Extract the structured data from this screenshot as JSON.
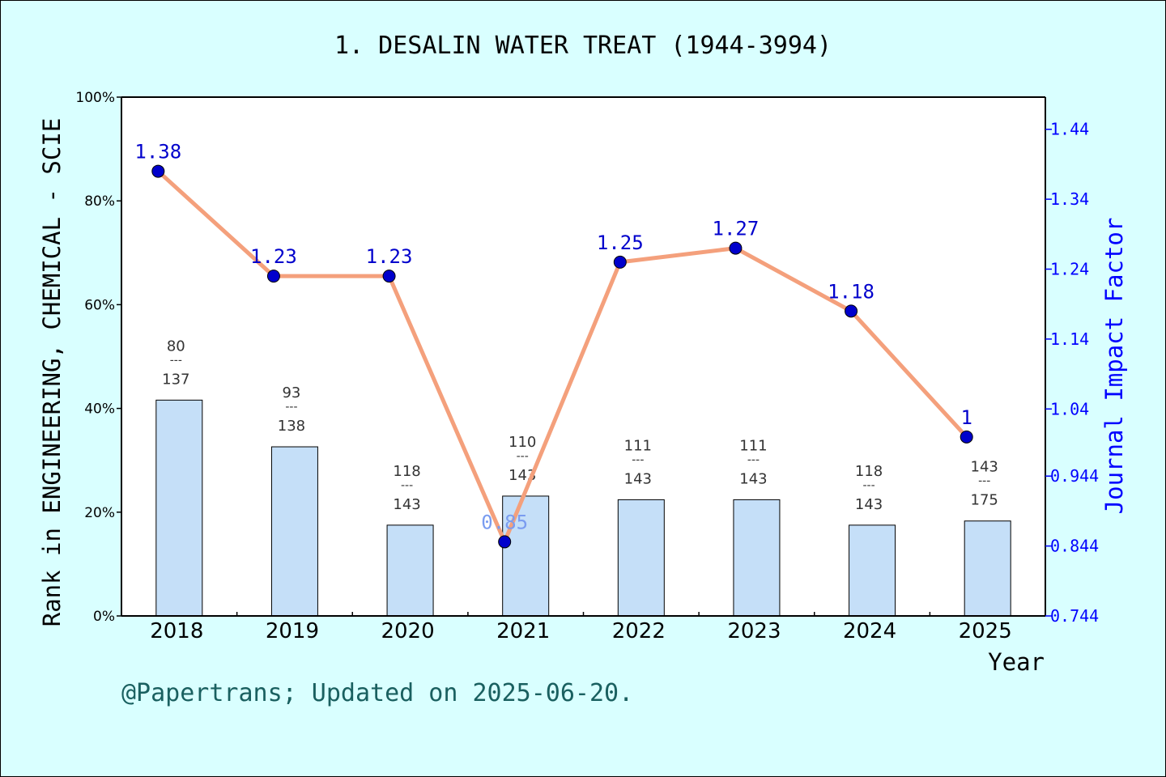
{
  "chart_data": {
    "type": "bar+line",
    "title": "1. DESALIN WATER TREAT (1944-3994)",
    "xlabel": "Year",
    "ylabel_left": "Rank in ENGINEERING, CHEMICAL - SCIE",
    "ylabel_right": "Journal Impact Factor",
    "categories": [
      "2018",
      "2019",
      "2020",
      "2021",
      "2022",
      "2023",
      "2024",
      "2025"
    ],
    "y_left": {
      "range": [
        0,
        100
      ],
      "ticks": [
        0,
        20,
        40,
        60,
        80,
        100
      ],
      "tick_labels": [
        "0%",
        "20%",
        "40%",
        "60%",
        "80%",
        "100%"
      ]
    },
    "y_right": {
      "range": [
        0.744,
        1.486
      ],
      "ticks": [
        0.744,
        0.844,
        0.944,
        1.04,
        1.14,
        1.24,
        1.34,
        1.44
      ],
      "tick_labels": [
        "0.744",
        "0.844",
        "0.944",
        "1.04",
        "1.14",
        "1.24",
        "1.34",
        "1.44"
      ]
    },
    "bars": {
      "rank": [
        80,
        93,
        118,
        110,
        111,
        111,
        118,
        143
      ],
      "total": [
        137,
        138,
        143,
        143,
        143,
        143,
        143,
        175
      ],
      "percent": [
        41.6,
        32.6,
        17.5,
        23.1,
        22.4,
        22.4,
        17.5,
        18.3
      ],
      "separator": "---",
      "color": "#c5dff8"
    },
    "line": {
      "values": [
        1.38,
        1.23,
        1.23,
        0.85,
        1.25,
        1.27,
        1.18,
        1
      ],
      "labels": [
        "1.38",
        "1.23",
        "1.23",
        "0.85",
        "1.25",
        "1.27",
        "1.18",
        "1"
      ],
      "line_color": "#f4a07c",
      "marker_color": "#0000cc"
    },
    "grid": false
  },
  "footer": {
    "credit": "@Papertrans; Updated on 2025-06-20."
  },
  "colors": {
    "background": "#d9ffff",
    "plot_background": "#ffffff",
    "right_axis": "#0000ff",
    "footer_text": "#1a6060"
  }
}
